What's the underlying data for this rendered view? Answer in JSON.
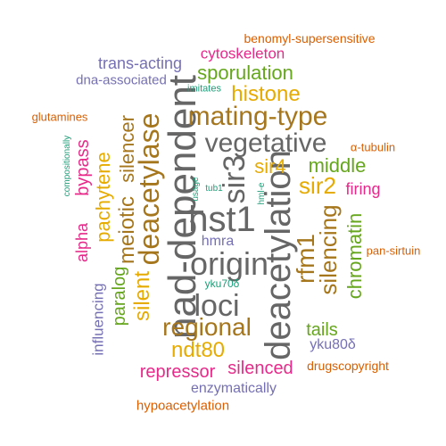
{
  "colors": {
    "teal": "#1b9e77",
    "orange": "#d95f02",
    "purple": "#7570b3",
    "magenta": "#e7298a",
    "green": "#66a61e",
    "gold": "#e6ab02",
    "brown": "#a6761d",
    "gray": "#666666"
  },
  "words": {
    "nad_dependent": "nad-dependent",
    "deacetylation": "deacetylation",
    "hst1": "hst1",
    "origin": "origin",
    "mating_type": "mating-type",
    "vegetative": "vegetative",
    "loci": "loci",
    "sir3": "sir3",
    "deacetylase": "deacetylase",
    "regional": "regional",
    "histone": "histone",
    "sir2": "sir2",
    "rfm1": "rfm1",
    "silencing": "silencing",
    "meiotic": "meiotic",
    "silencer": "silencer",
    "ndt80": "ndt80",
    "sporulation": "sporulation",
    "silent": "silent",
    "pachytene": "pachytene",
    "middle": "middle",
    "chromatin": "chromatin",
    "sir4": "sir4",
    "silenced": "silenced",
    "repressor": "repressor",
    "paralog": "paralog",
    "tails": "tails",
    "bypass": "bypass",
    "cytoskeleton": "cytoskeleton",
    "trans_acting": "trans-acting",
    "firing": "firing",
    "alpha": "alpha",
    "influencing": "influencing",
    "enzymatically": "enzymatically",
    "hypoacetylation": "hypoacetylation",
    "dna_associated": "dna-associated",
    "benomyl_supersensitive": "benomyl-supersensitive",
    "hmra": "hmra",
    "yku80d": "yku80δ",
    "drugscopyright": "drugscopyright",
    "glutamines": "glutamines",
    "alpha_tubulin": "α-tubulin",
    "pan_sirtuin": "pan-sirtuin",
    "imitates": "imitates",
    "compositionally": "compositionally",
    "usage": "usage",
    "tub1": "tub1",
    "hml_e": "hml-e",
    "yku70d": "yku70δ"
  }
}
